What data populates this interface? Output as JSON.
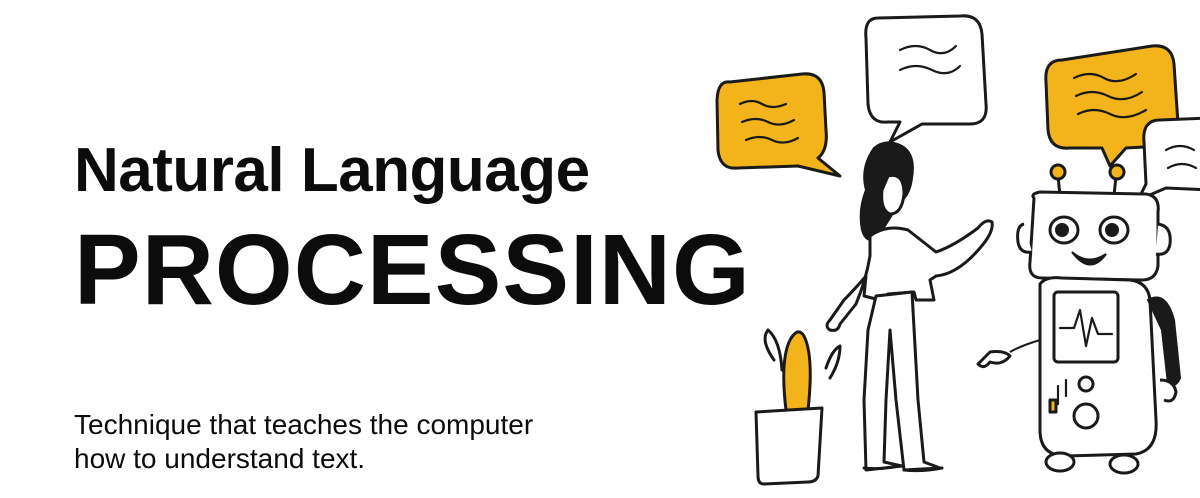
{
  "title": {
    "line1": "Natural Language",
    "line2": "PROCESSING"
  },
  "subtitle": {
    "line1": "Technique that teaches the computer",
    "line2": "how to understand text."
  },
  "colors": {
    "accent": "#f2b41a",
    "ink": "#1a1a1a",
    "background": "#ffffff"
  },
  "illustration": {
    "elements": [
      "yellow-speech-bubble-icon",
      "white-speech-bubble-icon",
      "woman-figure",
      "robot-figure",
      "potted-plant-icon"
    ]
  }
}
